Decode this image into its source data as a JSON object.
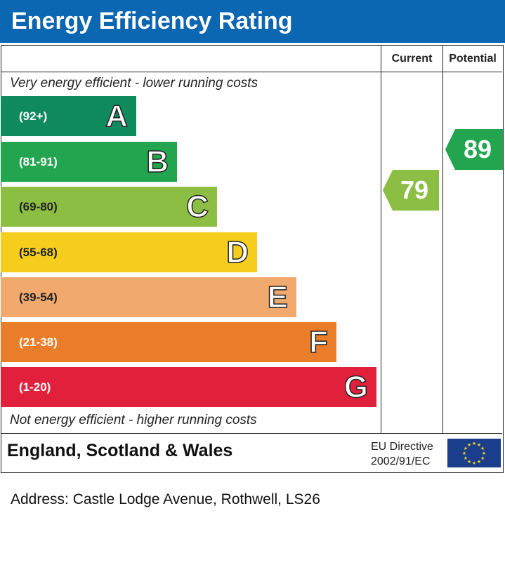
{
  "title": "Energy Efficiency Rating",
  "columns": {
    "current": "Current",
    "potential": "Potential"
  },
  "top_note": "Very energy efficient - lower running costs",
  "bottom_note": "Not energy efficient - higher running costs",
  "footer": {
    "country": "England, Scotland & Wales",
    "eu_line1": "EU Directive",
    "eu_line2": "2002/91/EC"
  },
  "address": "Address: Castle Lodge Avenue, Rothwell, LS26",
  "colors": {
    "header": "#0c67b3",
    "A": "#0f8a5f",
    "B": "#22a54e",
    "C": "#8cbe44",
    "D": "#f4cd1d",
    "E": "#f1a96d",
    "F": "#ea7d29",
    "G": "#e1213c"
  },
  "chart_data": {
    "type": "bar",
    "categories": [
      "A",
      "B",
      "C",
      "D",
      "E",
      "F",
      "G"
    ],
    "ranges": [
      "(92+)",
      "(81-91)",
      "(69-80)",
      "(55-68)",
      "(39-54)",
      "(21-38)",
      "(1-20)"
    ],
    "band_lower_bounds": [
      92,
      81,
      69,
      55,
      39,
      21,
      1
    ],
    "current": {
      "value": 79,
      "label": "79",
      "band": "C"
    },
    "potential": {
      "value": 89,
      "label": "89",
      "band": "B"
    }
  }
}
